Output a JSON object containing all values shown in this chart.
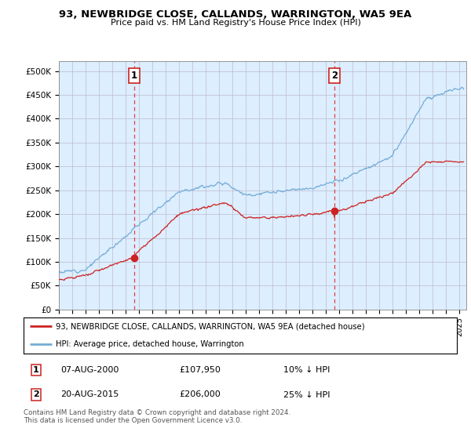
{
  "title": "93, NEWBRIDGE CLOSE, CALLANDS, WARRINGTON, WA5 9EA",
  "subtitle": "Price paid vs. HM Land Registry's House Price Index (HPI)",
  "ylim": [
    0,
    520000
  ],
  "yticks": [
    0,
    50000,
    100000,
    150000,
    200000,
    250000,
    300000,
    350000,
    400000,
    450000,
    500000
  ],
  "ytick_labels": [
    "£0",
    "£50K",
    "£100K",
    "£150K",
    "£200K",
    "£250K",
    "£300K",
    "£350K",
    "£400K",
    "£450K",
    "£500K"
  ],
  "hpi_color": "#74acd5",
  "price_color": "#cc2222",
  "marker_color": "#cc2222",
  "dashed_color": "#dd4444",
  "plot_bg_color": "#ddeeff",
  "marker1_date": 2000.62,
  "marker2_date": 2015.62,
  "marker1_price": 107950,
  "marker2_price": 206000,
  "legend_entry1": "93, NEWBRIDGE CLOSE, CALLANDS, WARRINGTON, WA5 9EA (detached house)",
  "legend_entry2": "HPI: Average price, detached house, Warrington",
  "bg_color": "#ffffff",
  "grid_color": "#bbbbcc",
  "xmin": 1995,
  "xmax": 2025.5
}
